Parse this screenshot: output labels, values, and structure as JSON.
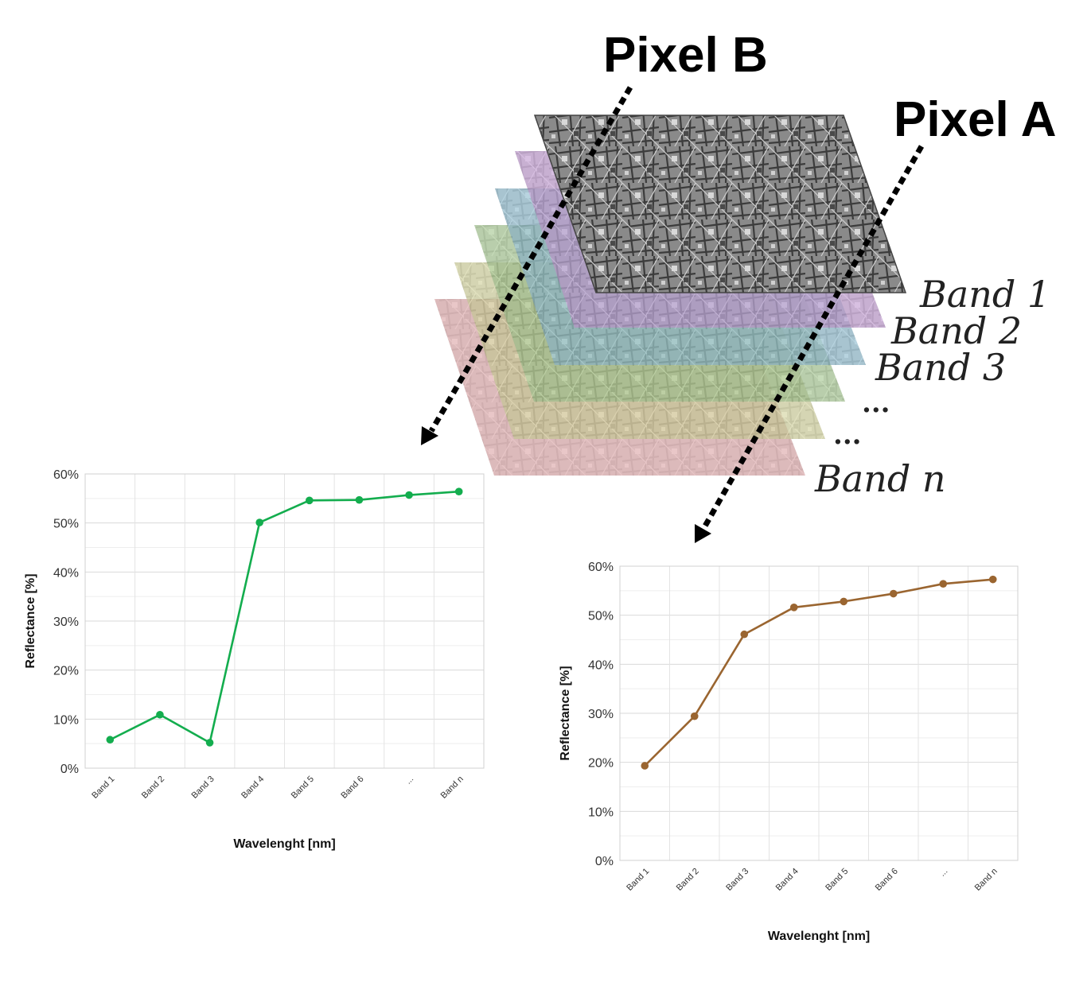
{
  "labels": {
    "pixel_b": "Pixel B",
    "pixel_a": "Pixel A"
  },
  "band_stack": {
    "labels": [
      "Band 1",
      "Band 2",
      "Band 3",
      "...",
      "...",
      "Band n"
    ],
    "layer_colors": [
      "#e2a4a6",
      "#d9d99a",
      "#a6cc8e",
      "#8cc0d6",
      "#c79ad8",
      "#7a7a7a"
    ]
  },
  "chart_data": [
    {
      "type": "line",
      "name": "pixel_b_chart",
      "categories": [
        "Band 1",
        "Band 2",
        "Band 3",
        "Band 4",
        "Band 5",
        "Band 6",
        "...",
        "Band n"
      ],
      "series": [
        {
          "values": [
            5.8,
            10.9,
            5.2,
            50.1,
            54.6,
            54.7,
            55.7,
            56.4
          ],
          "color": "#13ad4e"
        }
      ],
      "xlabel": "Wavelenght [nm]",
      "ylabel": "Reflectance [%]",
      "ylim": [
        0,
        60
      ],
      "yticks": [
        "0%",
        "10%",
        "20%",
        "30%",
        "40%",
        "50%",
        "60%"
      ],
      "grid": true
    },
    {
      "type": "line",
      "name": "pixel_a_chart",
      "categories": [
        "Band 1",
        "Band 2",
        "Band 3",
        "Band 4",
        "Band 5",
        "Band 6",
        "...",
        "Band n"
      ],
      "series": [
        {
          "values": [
            19.3,
            29.4,
            46.1,
            51.6,
            52.8,
            54.4,
            56.4,
            57.3
          ],
          "color": "#9a6530"
        }
      ],
      "xlabel": "Wavelenght [nm]",
      "ylabel": "Reflectance [%]",
      "ylim": [
        0,
        60
      ],
      "yticks": [
        "0%",
        "10%",
        "20%",
        "30%",
        "40%",
        "50%",
        "60%"
      ],
      "grid": true
    }
  ]
}
